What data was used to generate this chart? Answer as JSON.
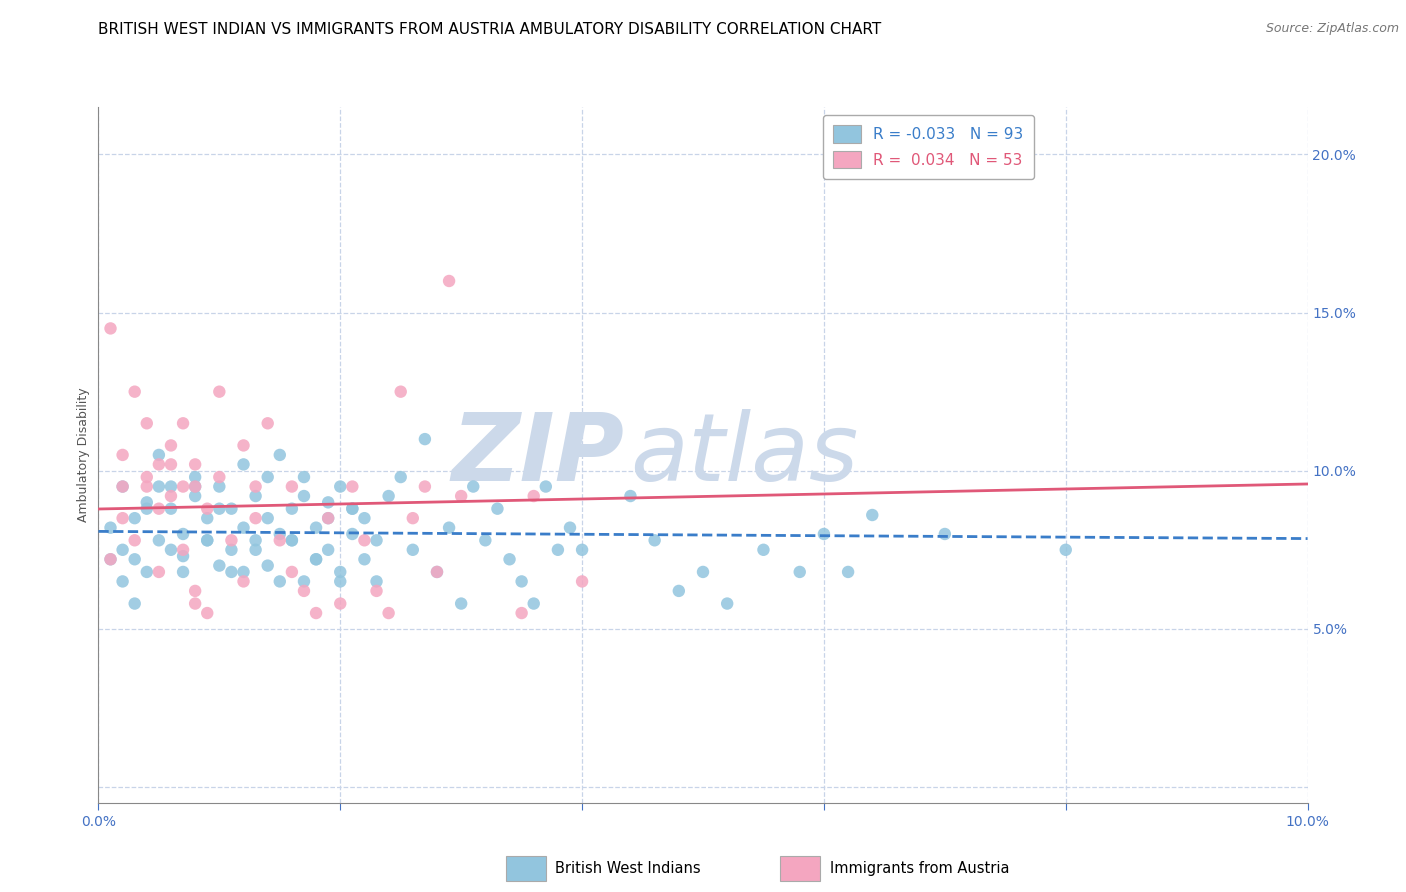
{
  "title": "BRITISH WEST INDIAN VS IMMIGRANTS FROM AUSTRIA AMBULATORY DISABILITY CORRELATION CHART",
  "source_text": "Source: ZipAtlas.com",
  "ylabel": "Ambulatory Disability",
  "xlim": [
    0.0,
    0.1
  ],
  "ylim": [
    -0.005,
    0.215
  ],
  "x_ticks": [
    0.0,
    0.02,
    0.04,
    0.06,
    0.08,
    0.1
  ],
  "y_ticks_right": [
    0.0,
    0.05,
    0.1,
    0.15,
    0.2
  ],
  "y_tick_labels_right": [
    "",
    "5.0%",
    "10.0%",
    "15.0%",
    "20.0%"
  ],
  "legend_blue_label": "British West Indians",
  "legend_pink_label": "Immigrants from Austria",
  "R_blue": -0.033,
  "N_blue": 93,
  "R_pink": 0.034,
  "N_pink": 53,
  "blue_color": "#92c5de",
  "pink_color": "#f4a6c0",
  "blue_line_color": "#3a7dc9",
  "pink_line_color": "#e05878",
  "grid_color": "#c8d4e8",
  "watermark_text_zip": "ZIP",
  "watermark_text_atlas": "atlas",
  "watermark_color": "#ccd9ea",
  "background_color": "#ffffff",
  "title_fontsize": 11,
  "source_fontsize": 9,
  "axis_label_fontsize": 9,
  "tick_fontsize": 10,
  "legend_fontsize": 11,
  "blue_scatter": [
    [
      0.001,
      0.082
    ],
    [
      0.002,
      0.075
    ],
    [
      0.002,
      0.095
    ],
    [
      0.003,
      0.085
    ],
    [
      0.003,
      0.072
    ],
    [
      0.004,
      0.068
    ],
    [
      0.004,
      0.09
    ],
    [
      0.005,
      0.078
    ],
    [
      0.005,
      0.105
    ],
    [
      0.006,
      0.095
    ],
    [
      0.006,
      0.088
    ],
    [
      0.007,
      0.08
    ],
    [
      0.007,
      0.073
    ],
    [
      0.008,
      0.098
    ],
    [
      0.008,
      0.092
    ],
    [
      0.009,
      0.085
    ],
    [
      0.009,
      0.078
    ],
    [
      0.01,
      0.07
    ],
    [
      0.01,
      0.095
    ],
    [
      0.011,
      0.088
    ],
    [
      0.011,
      0.075
    ],
    [
      0.012,
      0.102
    ],
    [
      0.012,
      0.068
    ],
    [
      0.013,
      0.078
    ],
    [
      0.013,
      0.092
    ],
    [
      0.014,
      0.085
    ],
    [
      0.014,
      0.07
    ],
    [
      0.015,
      0.08
    ],
    [
      0.015,
      0.105
    ],
    [
      0.016,
      0.078
    ],
    [
      0.016,
      0.088
    ],
    [
      0.017,
      0.065
    ],
    [
      0.017,
      0.098
    ],
    [
      0.018,
      0.072
    ],
    [
      0.018,
      0.082
    ],
    [
      0.019,
      0.09
    ],
    [
      0.019,
      0.075
    ],
    [
      0.02,
      0.068
    ],
    [
      0.02,
      0.095
    ],
    [
      0.021,
      0.08
    ],
    [
      0.021,
      0.088
    ],
    [
      0.022,
      0.072
    ],
    [
      0.022,
      0.085
    ],
    [
      0.023,
      0.078
    ],
    [
      0.023,
      0.065
    ],
    [
      0.024,
      0.092
    ],
    [
      0.025,
      0.098
    ],
    [
      0.026,
      0.075
    ],
    [
      0.027,
      0.11
    ],
    [
      0.028,
      0.068
    ],
    [
      0.029,
      0.082
    ],
    [
      0.03,
      0.058
    ],
    [
      0.031,
      0.095
    ],
    [
      0.032,
      0.078
    ],
    [
      0.033,
      0.088
    ],
    [
      0.034,
      0.072
    ],
    [
      0.035,
      0.065
    ],
    [
      0.036,
      0.058
    ],
    [
      0.037,
      0.095
    ],
    [
      0.038,
      0.075
    ],
    [
      0.039,
      0.082
    ],
    [
      0.001,
      0.072
    ],
    [
      0.002,
      0.065
    ],
    [
      0.003,
      0.058
    ],
    [
      0.004,
      0.088
    ],
    [
      0.005,
      0.095
    ],
    [
      0.006,
      0.075
    ],
    [
      0.007,
      0.068
    ],
    [
      0.008,
      0.095
    ],
    [
      0.009,
      0.078
    ],
    [
      0.01,
      0.088
    ],
    [
      0.011,
      0.068
    ],
    [
      0.012,
      0.082
    ],
    [
      0.013,
      0.075
    ],
    [
      0.014,
      0.098
    ],
    [
      0.015,
      0.065
    ],
    [
      0.016,
      0.078
    ],
    [
      0.017,
      0.092
    ],
    [
      0.018,
      0.072
    ],
    [
      0.019,
      0.085
    ],
    [
      0.02,
      0.065
    ],
    [
      0.021,
      0.088
    ],
    [
      0.04,
      0.075
    ],
    [
      0.044,
      0.092
    ],
    [
      0.046,
      0.078
    ],
    [
      0.048,
      0.062
    ],
    [
      0.05,
      0.068
    ],
    [
      0.052,
      0.058
    ],
    [
      0.055,
      0.075
    ],
    [
      0.058,
      0.068
    ],
    [
      0.06,
      0.08
    ],
    [
      0.062,
      0.068
    ],
    [
      0.064,
      0.086
    ],
    [
      0.07,
      0.08
    ],
    [
      0.08,
      0.075
    ]
  ],
  "pink_scatter": [
    [
      0.001,
      0.145
    ],
    [
      0.002,
      0.095
    ],
    [
      0.002,
      0.105
    ],
    [
      0.003,
      0.125
    ],
    [
      0.004,
      0.098
    ],
    [
      0.004,
      0.115
    ],
    [
      0.005,
      0.088
    ],
    [
      0.005,
      0.102
    ],
    [
      0.006,
      0.092
    ],
    [
      0.006,
      0.108
    ],
    [
      0.007,
      0.095
    ],
    [
      0.007,
      0.115
    ],
    [
      0.008,
      0.102
    ],
    [
      0.008,
      0.095
    ],
    [
      0.009,
      0.088
    ],
    [
      0.01,
      0.125
    ],
    [
      0.01,
      0.098
    ],
    [
      0.011,
      0.078
    ],
    [
      0.012,
      0.108
    ],
    [
      0.012,
      0.065
    ],
    [
      0.013,
      0.095
    ],
    [
      0.013,
      0.085
    ],
    [
      0.014,
      0.115
    ],
    [
      0.015,
      0.078
    ],
    [
      0.016,
      0.068
    ],
    [
      0.016,
      0.095
    ],
    [
      0.017,
      0.062
    ],
    [
      0.018,
      0.055
    ],
    [
      0.019,
      0.085
    ],
    [
      0.02,
      0.058
    ],
    [
      0.021,
      0.095
    ],
    [
      0.022,
      0.078
    ],
    [
      0.023,
      0.062
    ],
    [
      0.024,
      0.055
    ],
    [
      0.025,
      0.125
    ],
    [
      0.026,
      0.085
    ],
    [
      0.027,
      0.095
    ],
    [
      0.028,
      0.068
    ],
    [
      0.029,
      0.16
    ],
    [
      0.03,
      0.092
    ],
    [
      0.001,
      0.072
    ],
    [
      0.002,
      0.085
    ],
    [
      0.003,
      0.078
    ],
    [
      0.004,
      0.095
    ],
    [
      0.005,
      0.068
    ],
    [
      0.006,
      0.102
    ],
    [
      0.007,
      0.075
    ],
    [
      0.008,
      0.062
    ],
    [
      0.009,
      0.055
    ],
    [
      0.035,
      0.055
    ],
    [
      0.036,
      0.092
    ],
    [
      0.008,
      0.058
    ],
    [
      0.04,
      0.065
    ]
  ]
}
